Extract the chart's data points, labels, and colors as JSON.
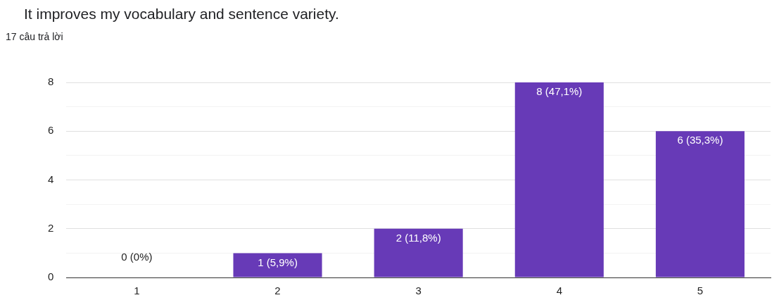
{
  "chart_data": {
    "type": "bar",
    "title": "It improves my vocabulary and sentence variety.",
    "subtitle": "17 câu trả lời",
    "categories": [
      "1",
      "2",
      "3",
      "4",
      "5"
    ],
    "values": [
      0,
      1,
      2,
      8,
      6
    ],
    "value_labels": [
      "0 (0%)",
      "1 (5,9%)",
      "2 (11,8%)",
      "8 (47,1%)",
      "6 (35,3%)"
    ],
    "color": "#673ab7",
    "ylim": [
      0,
      8
    ],
    "yticks": [
      0,
      {
        "value": 1,
        "label": null
      },
      2,
      {
        "value": 3,
        "label": null
      },
      4,
      {
        "value": 5,
        "label": null
      },
      6,
      {
        "value": 7,
        "label": null
      },
      8
    ],
    "grid": "y",
    "legend": false
  }
}
